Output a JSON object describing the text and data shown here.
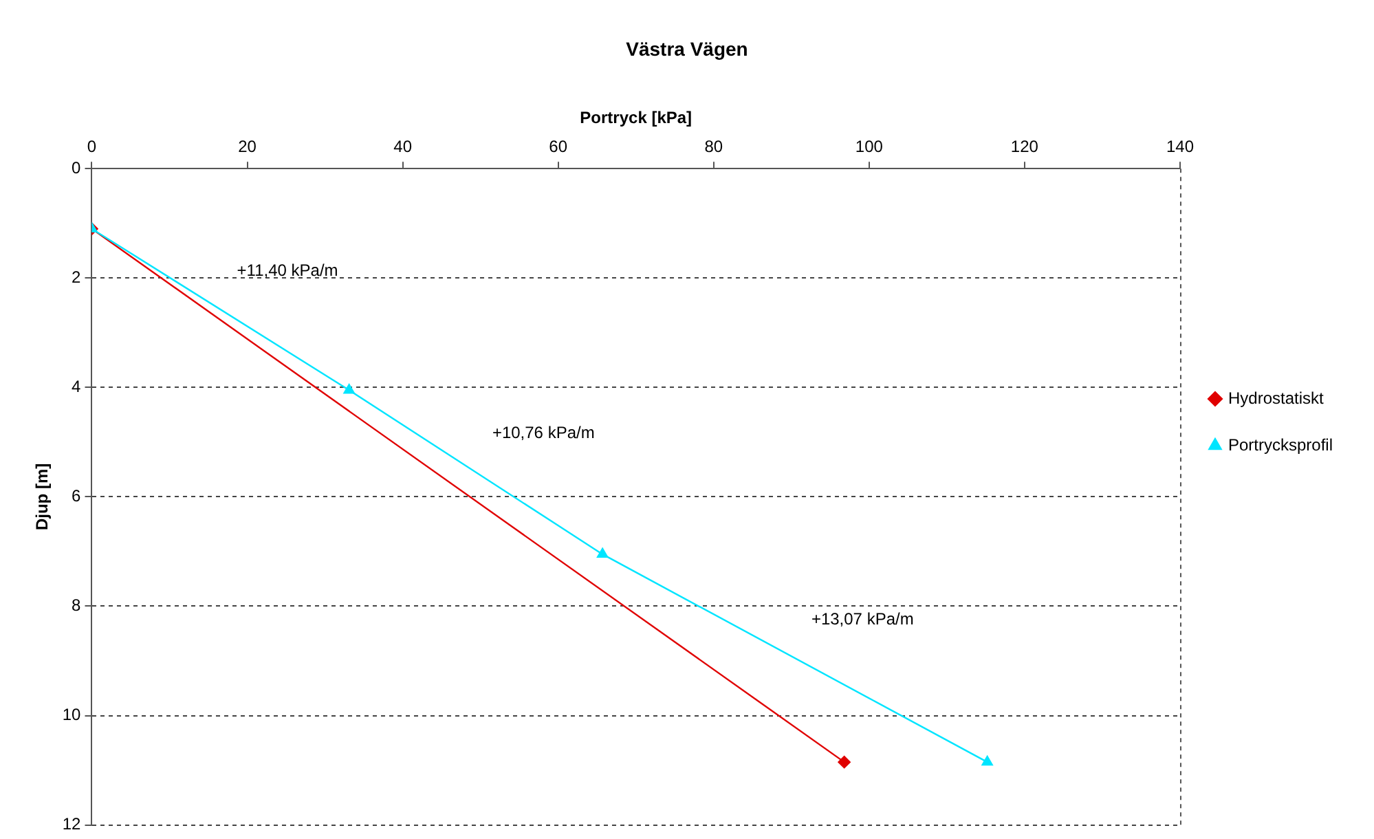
{
  "chart_data": {
    "type": "line",
    "title": "Västra Vägen",
    "xlabel": "Portryck [kPa]",
    "ylabel": "Djup [m]",
    "xlim": [
      0,
      140
    ],
    "xticks": [
      0,
      20,
      40,
      60,
      80,
      100,
      120,
      140
    ],
    "ylim": [
      12,
      0
    ],
    "yticks": [
      0,
      2,
      4,
      6,
      8,
      10,
      12
    ],
    "grid": "y",
    "legend": "right",
    "series": [
      {
        "name": "Hydrostatiskt",
        "color": "#e00000",
        "marker": "diamond",
        "x": [
          0,
          96.8
        ],
        "values": [
          1.1,
          10.85
        ]
      },
      {
        "name": "Portrycksprofil",
        "color": "#00e5ff",
        "marker": "triangle",
        "x": [
          0,
          33.1,
          65.7,
          115.2
        ],
        "values": [
          1.1,
          4.05,
          7.05,
          10.85
        ]
      }
    ],
    "annotations": [
      "+11,40 kPa/m",
      "+10,76 kPa/m",
      "+13,07 kPa/m"
    ]
  }
}
